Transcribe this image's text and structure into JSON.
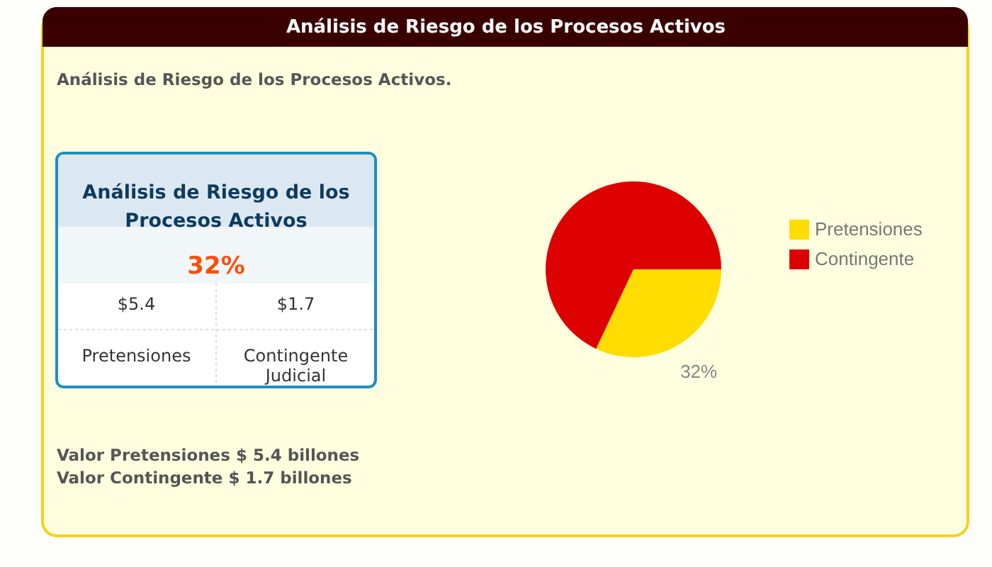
{
  "chart_data": [
    {
      "type": "pie",
      "title": "Análisis de Riesgo de los Procesos Activos",
      "subtitle": "Análisis de Riesgo de los Procesos Activos.",
      "annotations": [
        "Valor Pretensiones $ 5.4 billones",
        "Valor Contingente $ 1.7 billones"
      ],
      "categories": [
        "Pretensiones",
        "Contingente"
      ],
      "values": [
        32,
        68
      ],
      "colors": [
        "#ffdd00",
        "#dd0000"
      ],
      "value_labels": [
        "32%",
        null
      ],
      "legend": "right"
    },
    {
      "type": "other",
      "title": "Análisis de Riesgo de los Procesos Activos",
      "annotations": [
        "32%",
        "$5.4",
        "$1.7",
        "Pretensiones",
        "Contingente Judicial"
      ]
    }
  ]
}
